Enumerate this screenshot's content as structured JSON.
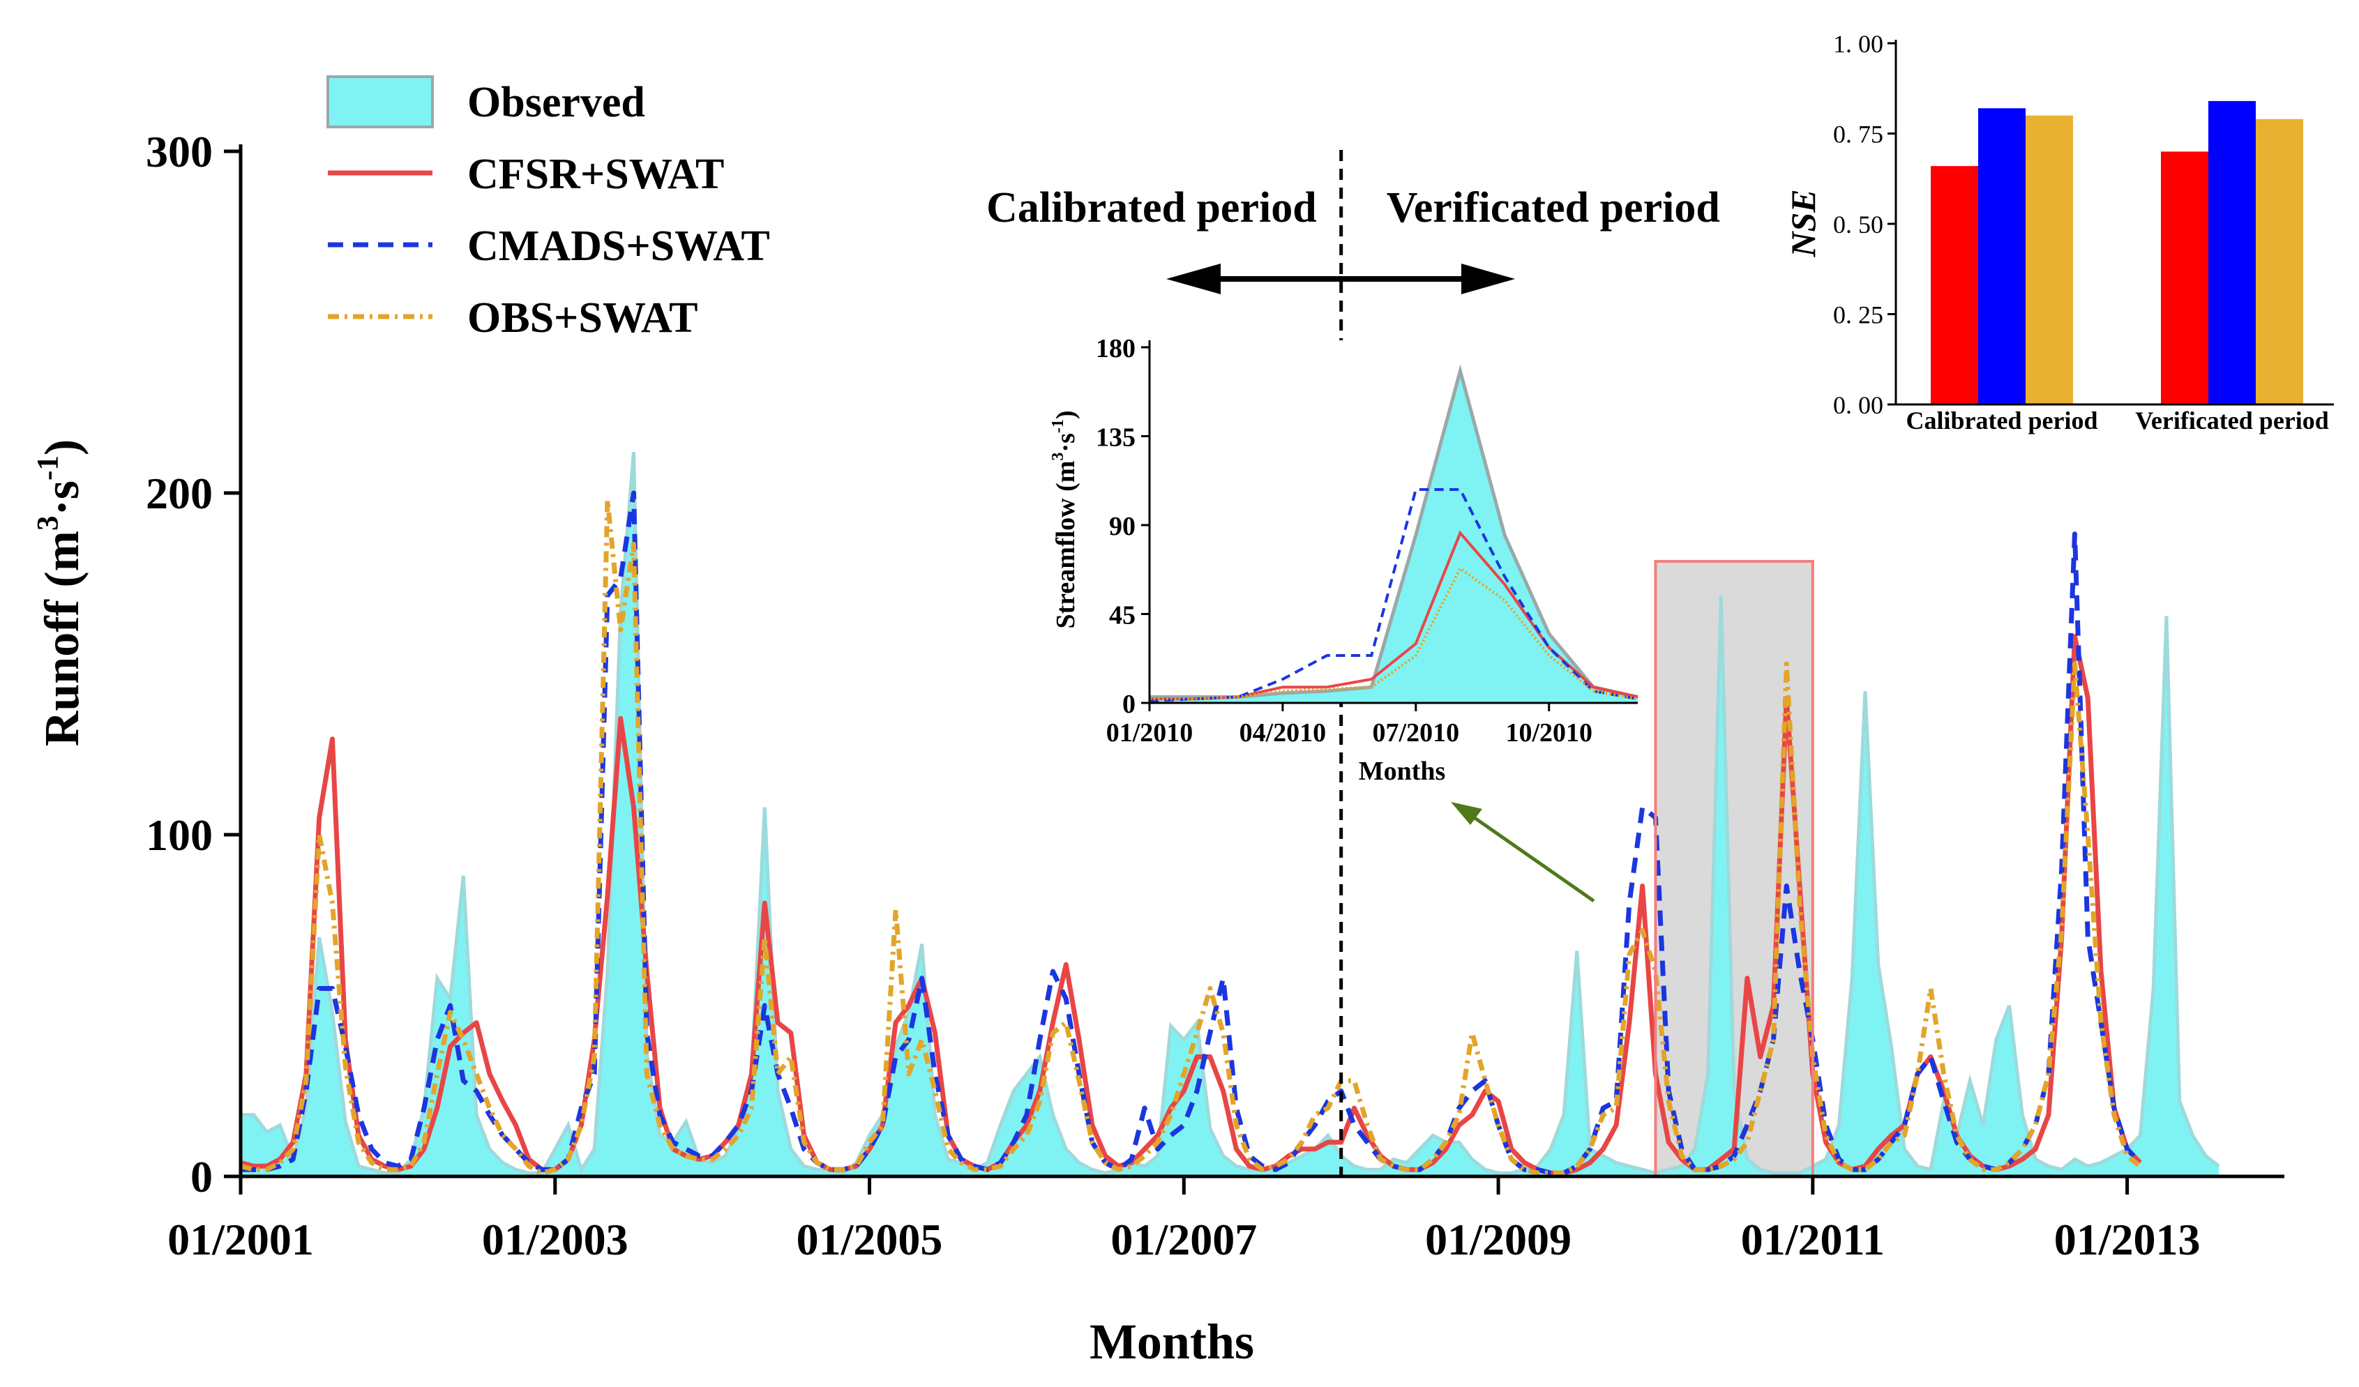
{
  "chart_data": [
    {
      "id": "main",
      "type": "area+line",
      "title": "",
      "xlabel": "Months",
      "ylabel": "Runoff (m³·s⁻¹)",
      "ylabel_parts": {
        "prefix": "Runoff (m",
        "sup1": "3",
        "mid": "·s",
        "sup2": "-1",
        "suffix": ")"
      },
      "xlim": [
        0,
        156
      ],
      "ylim": [
        0,
        300
      ],
      "yticks": [
        0,
        100,
        200,
        300
      ],
      "x_tick_positions": [
        0,
        24,
        48,
        72,
        96,
        120,
        144
      ],
      "x_tick_labels": [
        "01/2001",
        "01/2003",
        "01/2005",
        "01/2007",
        "01/2009",
        "01/2011",
        "01/2013"
      ],
      "divider_x": 84,
      "highlight_range": [
        108,
        120
      ],
      "period_labels": {
        "left": "Calibrated period",
        "right": "Verificated period"
      },
      "legend": [
        "Observed",
        "CFSR+SWAT",
        "CMADS+SWAT",
        "OBS+SWAT"
      ],
      "series": [
        {
          "name": "Observed",
          "style": "area",
          "color": "#9ddadc",
          "fill": "#7ff3f3",
          "values": [
            18,
            18,
            13,
            15,
            5,
            20,
            70,
            48,
            16,
            3,
            2,
            1,
            1,
            5,
            20,
            58,
            52,
            88,
            18,
            8,
            4,
            2,
            1,
            1,
            8,
            15,
            2,
            8,
            60,
            165,
            212,
            36,
            12,
            10,
            16,
            5,
            4,
            6,
            14,
            30,
            108,
            25,
            8,
            3,
            2,
            2,
            1,
            4,
            12,
            18,
            38,
            48,
            68,
            18,
            5,
            4,
            2,
            4,
            15,
            25,
            30,
            35,
            18,
            8,
            4,
            2,
            1,
            2,
            4,
            3,
            6,
            44,
            40,
            45,
            14,
            6,
            3,
            2,
            2,
            3,
            4,
            6,
            8,
            12,
            6,
            3,
            2,
            2,
            5,
            4,
            8,
            12,
            10,
            10,
            5,
            2,
            1,
            1,
            2,
            3,
            8,
            18,
            66,
            8,
            6,
            4,
            3,
            2,
            1,
            2,
            3,
            8,
            30,
            170,
            25,
            5,
            2,
            1,
            1,
            1,
            3,
            5,
            15,
            58,
            142,
            62,
            38,
            8,
            3,
            2,
            22,
            12,
            28,
            15,
            40,
            50,
            18,
            5,
            3,
            2,
            5,
            3,
            4,
            6,
            8,
            12,
            55,
            164,
            22,
            12,
            6,
            3
          ]
        },
        {
          "name": "CFSR+SWAT",
          "style": "solid",
          "color": "#e84646",
          "values": [
            4,
            3,
            3,
            5,
            10,
            30,
            105,
            128,
            40,
            12,
            5,
            3,
            2,
            3,
            8,
            20,
            38,
            42,
            45,
            30,
            22,
            15,
            5,
            2,
            2,
            5,
            15,
            40,
            82,
            134,
            108,
            60,
            20,
            8,
            6,
            5,
            6,
            10,
            15,
            30,
            80,
            45,
            42,
            12,
            4,
            2,
            2,
            3,
            8,
            15,
            45,
            50,
            58,
            42,
            12,
            5,
            3,
            2,
            4,
            10,
            15,
            25,
            45,
            62,
            40,
            15,
            6,
            3,
            4,
            8,
            12,
            20,
            25,
            35,
            35,
            25,
            8,
            3,
            2,
            3,
            6,
            8,
            8,
            10,
            10,
            20,
            12,
            6,
            3,
            2,
            2,
            4,
            8,
            15,
            18,
            25,
            22,
            8,
            4,
            2,
            1,
            1,
            2,
            4,
            8,
            15,
            45,
            85,
            30,
            10,
            5,
            2,
            2,
            5,
            8,
            58,
            35,
            50,
            140,
            85,
            30,
            10,
            4,
            2,
            3,
            8,
            12,
            15,
            30,
            35,
            25,
            12,
            6,
            3,
            2,
            3,
            5,
            8,
            18,
            70,
            158,
            140,
            60,
            20,
            8,
            4
          ]
        },
        {
          "name": "CMADS+SWAT",
          "style": "dashed",
          "color": "#1b36e0",
          "values": [
            2,
            2,
            2,
            3,
            5,
            25,
            55,
            55,
            38,
            18,
            8,
            4,
            3,
            5,
            20,
            40,
            50,
            28,
            25,
            18,
            12,
            8,
            4,
            2,
            2,
            5,
            20,
            30,
            170,
            175,
            200,
            42,
            18,
            10,
            8,
            6,
            6,
            10,
            15,
            25,
            50,
            30,
            20,
            8,
            4,
            2,
            2,
            3,
            8,
            15,
            35,
            40,
            58,
            30,
            12,
            5,
            3,
            2,
            4,
            10,
            18,
            40,
            60,
            52,
            30,
            10,
            4,
            2,
            5,
            20,
            8,
            12,
            15,
            25,
            42,
            58,
            20,
            6,
            3,
            2,
            4,
            10,
            15,
            22,
            25,
            15,
            10,
            5,
            3,
            2,
            2,
            5,
            10,
            20,
            25,
            28,
            15,
            5,
            2,
            2,
            1,
            1,
            3,
            8,
            20,
            22,
            80,
            108,
            105,
            25,
            8,
            2,
            2,
            3,
            6,
            15,
            25,
            40,
            85,
            60,
            40,
            15,
            5,
            2,
            2,
            5,
            10,
            15,
            30,
            35,
            22,
            10,
            5,
            3,
            2,
            4,
            8,
            15,
            30,
            90,
            188,
            70,
            45,
            20,
            8,
            4
          ]
        },
        {
          "name": "OBS+SWAT",
          "style": "dashdot",
          "color": "#e2a52a",
          "values": [
            3,
            2,
            2,
            4,
            8,
            28,
            100,
            80,
            32,
            10,
            4,
            2,
            2,
            3,
            10,
            30,
            48,
            40,
            30,
            20,
            12,
            8,
            3,
            1,
            2,
            5,
            15,
            35,
            198,
            160,
            185,
            30,
            15,
            8,
            6,
            5,
            5,
            8,
            12,
            20,
            70,
            30,
            35,
            10,
            4,
            2,
            2,
            3,
            10,
            15,
            78,
            30,
            40,
            25,
            8,
            4,
            2,
            2,
            3,
            8,
            12,
            22,
            42,
            45,
            28,
            10,
            4,
            2,
            3,
            6,
            10,
            18,
            30,
            42,
            55,
            42,
            15,
            5,
            2,
            3,
            5,
            10,
            18,
            20,
            28,
            28,
            15,
            5,
            3,
            2,
            2,
            5,
            10,
            18,
            42,
            28,
            15,
            5,
            2,
            1,
            1,
            1,
            3,
            8,
            18,
            20,
            65,
            72,
            60,
            22,
            6,
            2,
            2,
            3,
            5,
            10,
            25,
            40,
            150,
            80,
            35,
            12,
            4,
            2,
            2,
            5,
            10,
            12,
            30,
            55,
            30,
            12,
            5,
            2,
            2,
            4,
            8,
            15,
            30,
            72,
            150,
            100,
            45,
            18,
            6,
            3
          ]
        }
      ]
    },
    {
      "id": "inset",
      "type": "area+line",
      "xlabel": "Months",
      "ylabel": "Streamflow (m³·s⁻¹)",
      "ylabel_parts": {
        "prefix": "Streamflow (m",
        "sup1": "3",
        "mid": "·s",
        "sup2": "-1",
        "suffix": ")"
      },
      "xlim": [
        0,
        11
      ],
      "ylim": [
        0,
        180
      ],
      "yticks": [
        0,
        45,
        90,
        135,
        180
      ],
      "x_tick_positions": [
        0,
        3,
        6,
        9
      ],
      "x_tick_labels": [
        "01/2010",
        "04/2010",
        "07/2010",
        "10/2010"
      ],
      "series": [
        {
          "name": "Observed",
          "style": "area",
          "color": "#9aa8a8",
          "fill": "#7ff3f3",
          "values": [
            3,
            3,
            3,
            5,
            6,
            8,
            85,
            168,
            85,
            35,
            8,
            3
          ]
        },
        {
          "name": "CFSR+SWAT",
          "style": "solid",
          "color": "#e84646",
          "values": [
            2,
            2,
            3,
            8,
            8,
            12,
            30,
            86,
            60,
            28,
            8,
            3
          ]
        },
        {
          "name": "CMADS+SWAT",
          "style": "dashed",
          "color": "#1b36e0",
          "values": [
            1,
            2,
            3,
            12,
            24,
            24,
            108,
            108,
            64,
            28,
            6,
            2
          ]
        },
        {
          "name": "OBS+SWAT",
          "style": "dotted",
          "color": "#e2a52a",
          "values": [
            2,
            2,
            3,
            6,
            7,
            8,
            24,
            68,
            52,
            24,
            6,
            2
          ]
        }
      ]
    },
    {
      "id": "nse",
      "type": "bar",
      "ylabel": "NSE",
      "ylim": [
        0,
        1
      ],
      "yticks": [
        0,
        0.25,
        0.5,
        0.75,
        1.0
      ],
      "ytick_labels": [
        "0. 00",
        "0. 25",
        "0. 50",
        "0. 75",
        "1. 00"
      ],
      "categories": [
        "Calibrated period",
        "Verificated period"
      ],
      "series": [
        {
          "name": "CFSR+SWAT",
          "color": "#ff0000",
          "values": [
            0.66,
            0.7
          ]
        },
        {
          "name": "CMADS+SWAT",
          "color": "#0000ff",
          "values": [
            0.82,
            0.84
          ]
        },
        {
          "name": "OBS+SWAT",
          "color": "#e8b132",
          "values": [
            0.8,
            0.79
          ]
        }
      ]
    }
  ]
}
